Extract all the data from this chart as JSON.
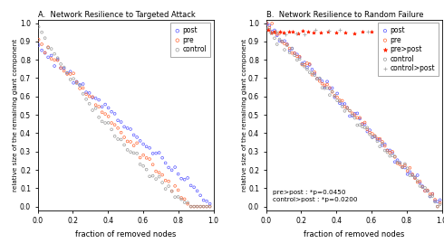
{
  "title_A": "A.  Network Resilience to Targeted Attack",
  "title_B": "B.  Network Resilience to Random Failure",
  "xlabel": "fraction of removed nodes",
  "ylabel": "relative size of the remaining giant component",
  "annotation_B": "pre>post : *p=0.0450\ncontrol>post : *p=0.0200",
  "colors": {
    "post": "#5555ff",
    "pre": "#ff6633",
    "control": "#999999",
    "pre_gt_post": "#ff2200",
    "control_gt_post": "#aaaaaa"
  },
  "xlim": [
    0,
    1
  ],
  "ylim": [
    -0.02,
    1.02
  ],
  "xticks": [
    0,
    0.2,
    0.4,
    0.6,
    0.8,
    1.0
  ],
  "yticks": [
    0,
    0.1,
    0.2,
    0.3,
    0.4,
    0.5,
    0.6,
    0.7,
    0.8,
    0.9,
    1.0
  ]
}
